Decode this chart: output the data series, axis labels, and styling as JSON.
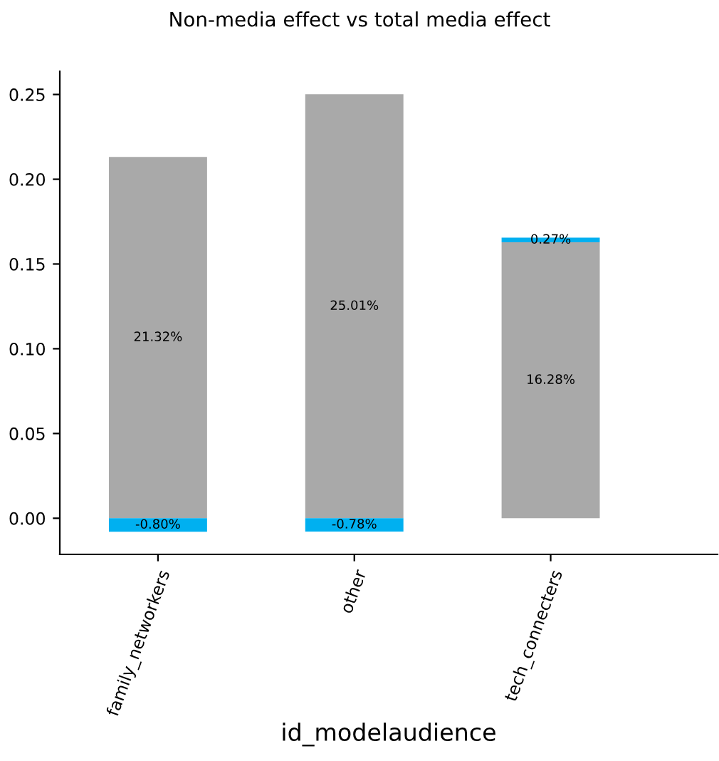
{
  "chart_data": {
    "type": "bar",
    "title": "Non-media effect vs total media effect",
    "xlabel": "id_modelaudience",
    "categories": [
      "family_networkers",
      "other",
      "tech_connecters"
    ],
    "stacked": true,
    "series": [
      {
        "color": "#a9a9a9",
        "values": [
          0.2132,
          0.2501,
          0.1628
        ],
        "value_labels": [
          "21.32%",
          "25.01%",
          "16.28%"
        ]
      },
      {
        "color": "#00b0f0",
        "values": [
          -0.008,
          -0.0078,
          0.0027
        ],
        "value_labels": [
          "-0.80%",
          "-0.78%",
          "0.27%"
        ]
      }
    ],
    "ylim": [
      -0.0213,
      0.2637
    ],
    "yticks": [
      {
        "value": 0,
        "label": "0.00"
      },
      {
        "value": 0.05,
        "label": "0.05"
      },
      {
        "value": 0.1,
        "label": "0.10"
      },
      {
        "value": 0.15,
        "label": "0.15"
      },
      {
        "value": 0.2,
        "label": "0.20"
      },
      {
        "value": 0.25,
        "label": "0.25"
      }
    ],
    "grid": false,
    "legend": false
  }
}
